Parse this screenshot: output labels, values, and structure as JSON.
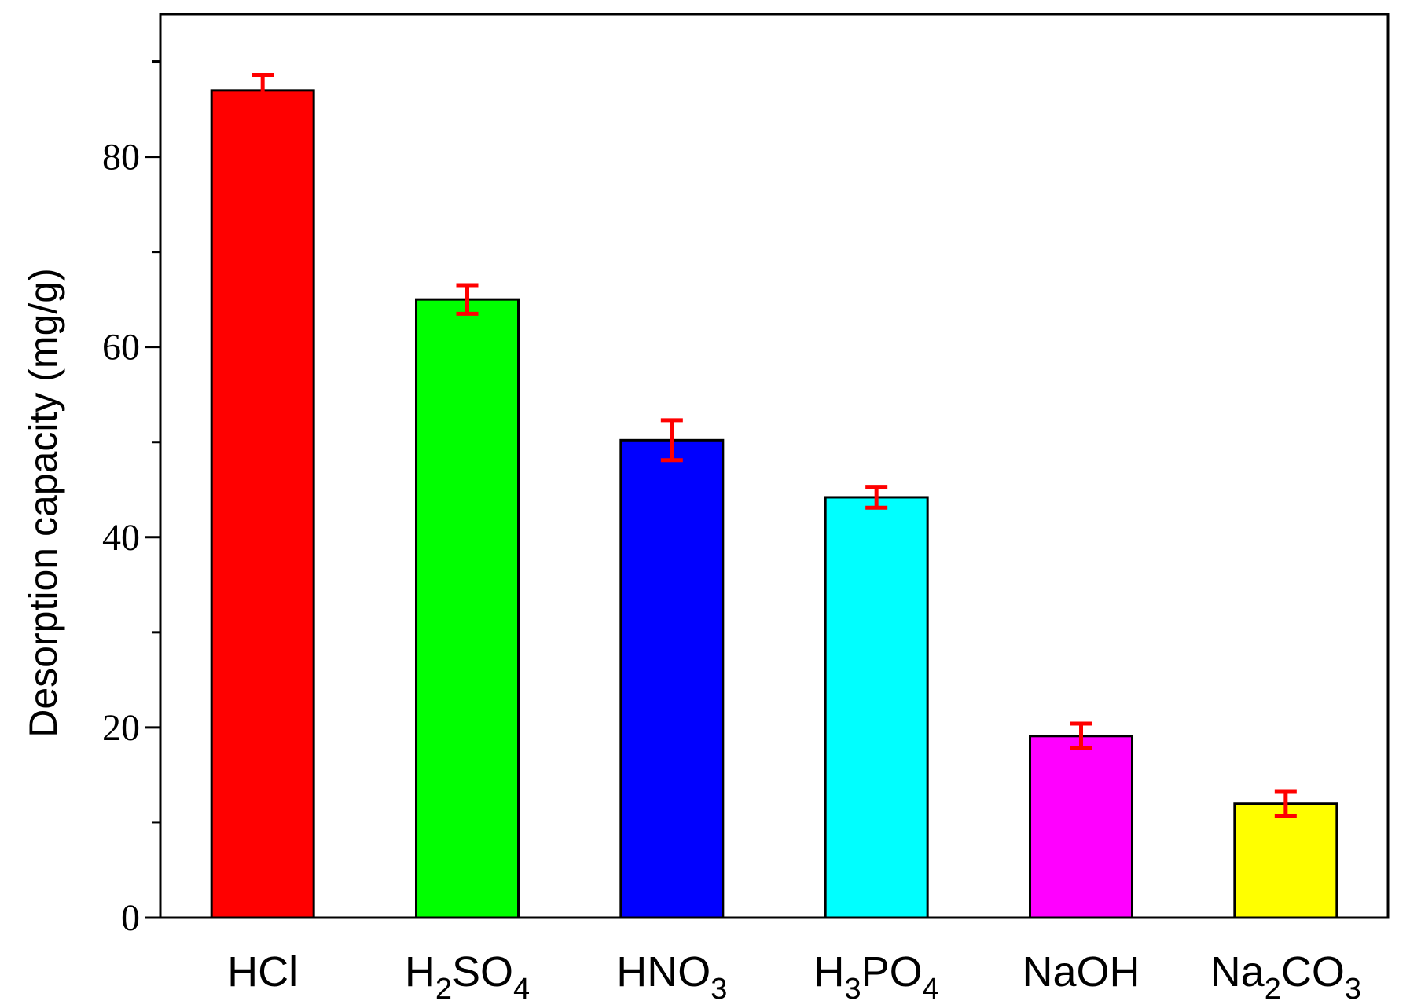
{
  "chart_data": {
    "type": "bar",
    "title": "",
    "xlabel": "",
    "ylabel": "Desorption capacity (mg/g)",
    "ylim": [
      0,
      95
    ],
    "yticks": [
      0,
      20,
      40,
      60,
      80
    ],
    "grid": false,
    "legend": "none",
    "categories": [
      {
        "base": "HCl",
        "parts": [
          {
            "t": "HCl"
          }
        ]
      },
      {
        "base": "H2SO4",
        "parts": [
          {
            "t": "H"
          },
          {
            "t": "2",
            "sub": true
          },
          {
            "t": "SO"
          },
          {
            "t": "4",
            "sub": true
          }
        ]
      },
      {
        "base": "HNO3",
        "parts": [
          {
            "t": "HNO"
          },
          {
            "t": "3",
            "sub": true
          }
        ]
      },
      {
        "base": "H3PO4",
        "parts": [
          {
            "t": "H"
          },
          {
            "t": "3",
            "sub": true
          },
          {
            "t": "PO"
          },
          {
            "t": "4",
            "sub": true
          }
        ]
      },
      {
        "base": "NaOH",
        "parts": [
          {
            "t": "NaOH"
          }
        ]
      },
      {
        "base": "Na2CO3",
        "parts": [
          {
            "t": "Na"
          },
          {
            "t": "2",
            "sub": true
          },
          {
            "t": "CO"
          },
          {
            "t": "3",
            "sub": true
          }
        ]
      }
    ],
    "values": [
      87.0,
      65.0,
      50.2,
      44.2,
      19.1,
      12.0
    ],
    "errors": [
      1.6,
      1.5,
      2.1,
      1.1,
      1.3,
      1.3
    ],
    "bar_colors": [
      "#ff0000",
      "#00ff00",
      "#0000ff",
      "#00ffff",
      "#ff00ff",
      "#ffff00"
    ],
    "error_bar_color": "#ff0000"
  }
}
